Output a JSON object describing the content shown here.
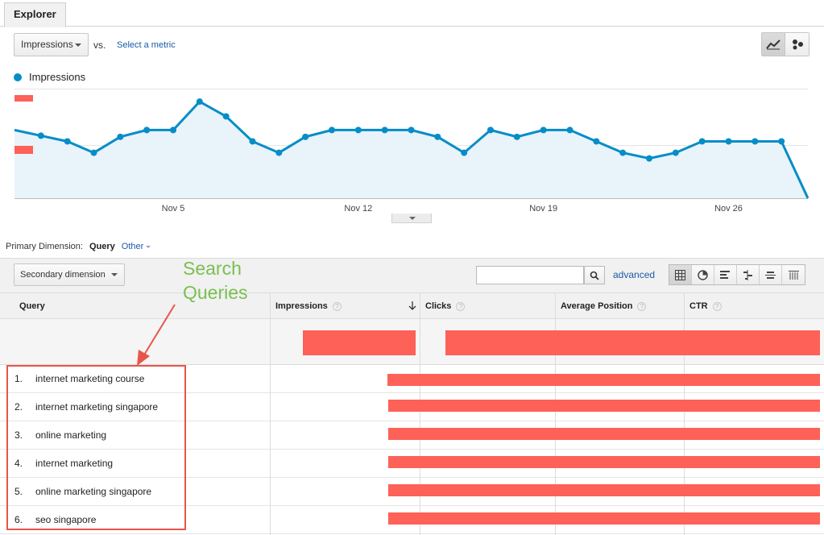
{
  "tab": {
    "label": "Explorer"
  },
  "metric_selector": {
    "selected": "Impressions",
    "vs_label": "vs.",
    "select_metric_link": "Select a metric"
  },
  "legend": {
    "label": "Impressions",
    "color": "#058dc7"
  },
  "chart_data": {
    "type": "line",
    "series": [
      {
        "name": "Impressions",
        "values": [
          100,
          95,
          90,
          80,
          94,
          100,
          100,
          125,
          112,
          90,
          80,
          94,
          100,
          100,
          100,
          100,
          94,
          80,
          100,
          94,
          100,
          100,
          90,
          80,
          75,
          80,
          90,
          90,
          90,
          90,
          40
        ]
      }
    ],
    "x_tick_labels": [
      "Nov 5",
      "Nov 12",
      "Nov 19",
      "Nov 26"
    ],
    "color": "#058dc7",
    "area_fill": "#e8f3fa"
  },
  "primary_dimension": {
    "label": "Primary Dimension:",
    "active": "Query",
    "other": "Other"
  },
  "toolbar": {
    "secondary_dimension": "Secondary dimension",
    "search_placeholder": "",
    "advanced_link": "advanced"
  },
  "table": {
    "columns": [
      "Query",
      "Impressions",
      "Clicks",
      "Average Position",
      "CTR"
    ],
    "help_glyph": "?",
    "rows": [
      {
        "index": "1.",
        "query": "internet marketing course"
      },
      {
        "index": "2.",
        "query": "internet marketing singapore"
      },
      {
        "index": "3.",
        "query": "online marketing"
      },
      {
        "index": "4.",
        "query": "internet marketing"
      },
      {
        "index": "5.",
        "query": "online marketing singapore"
      },
      {
        "index": "6.",
        "query": "seo singapore"
      }
    ]
  },
  "annotation": {
    "line1": "Search",
    "line2": "Queries",
    "text_color": "#79c050",
    "box_color": "#e8554a"
  },
  "redaction_color": "#fd6157"
}
